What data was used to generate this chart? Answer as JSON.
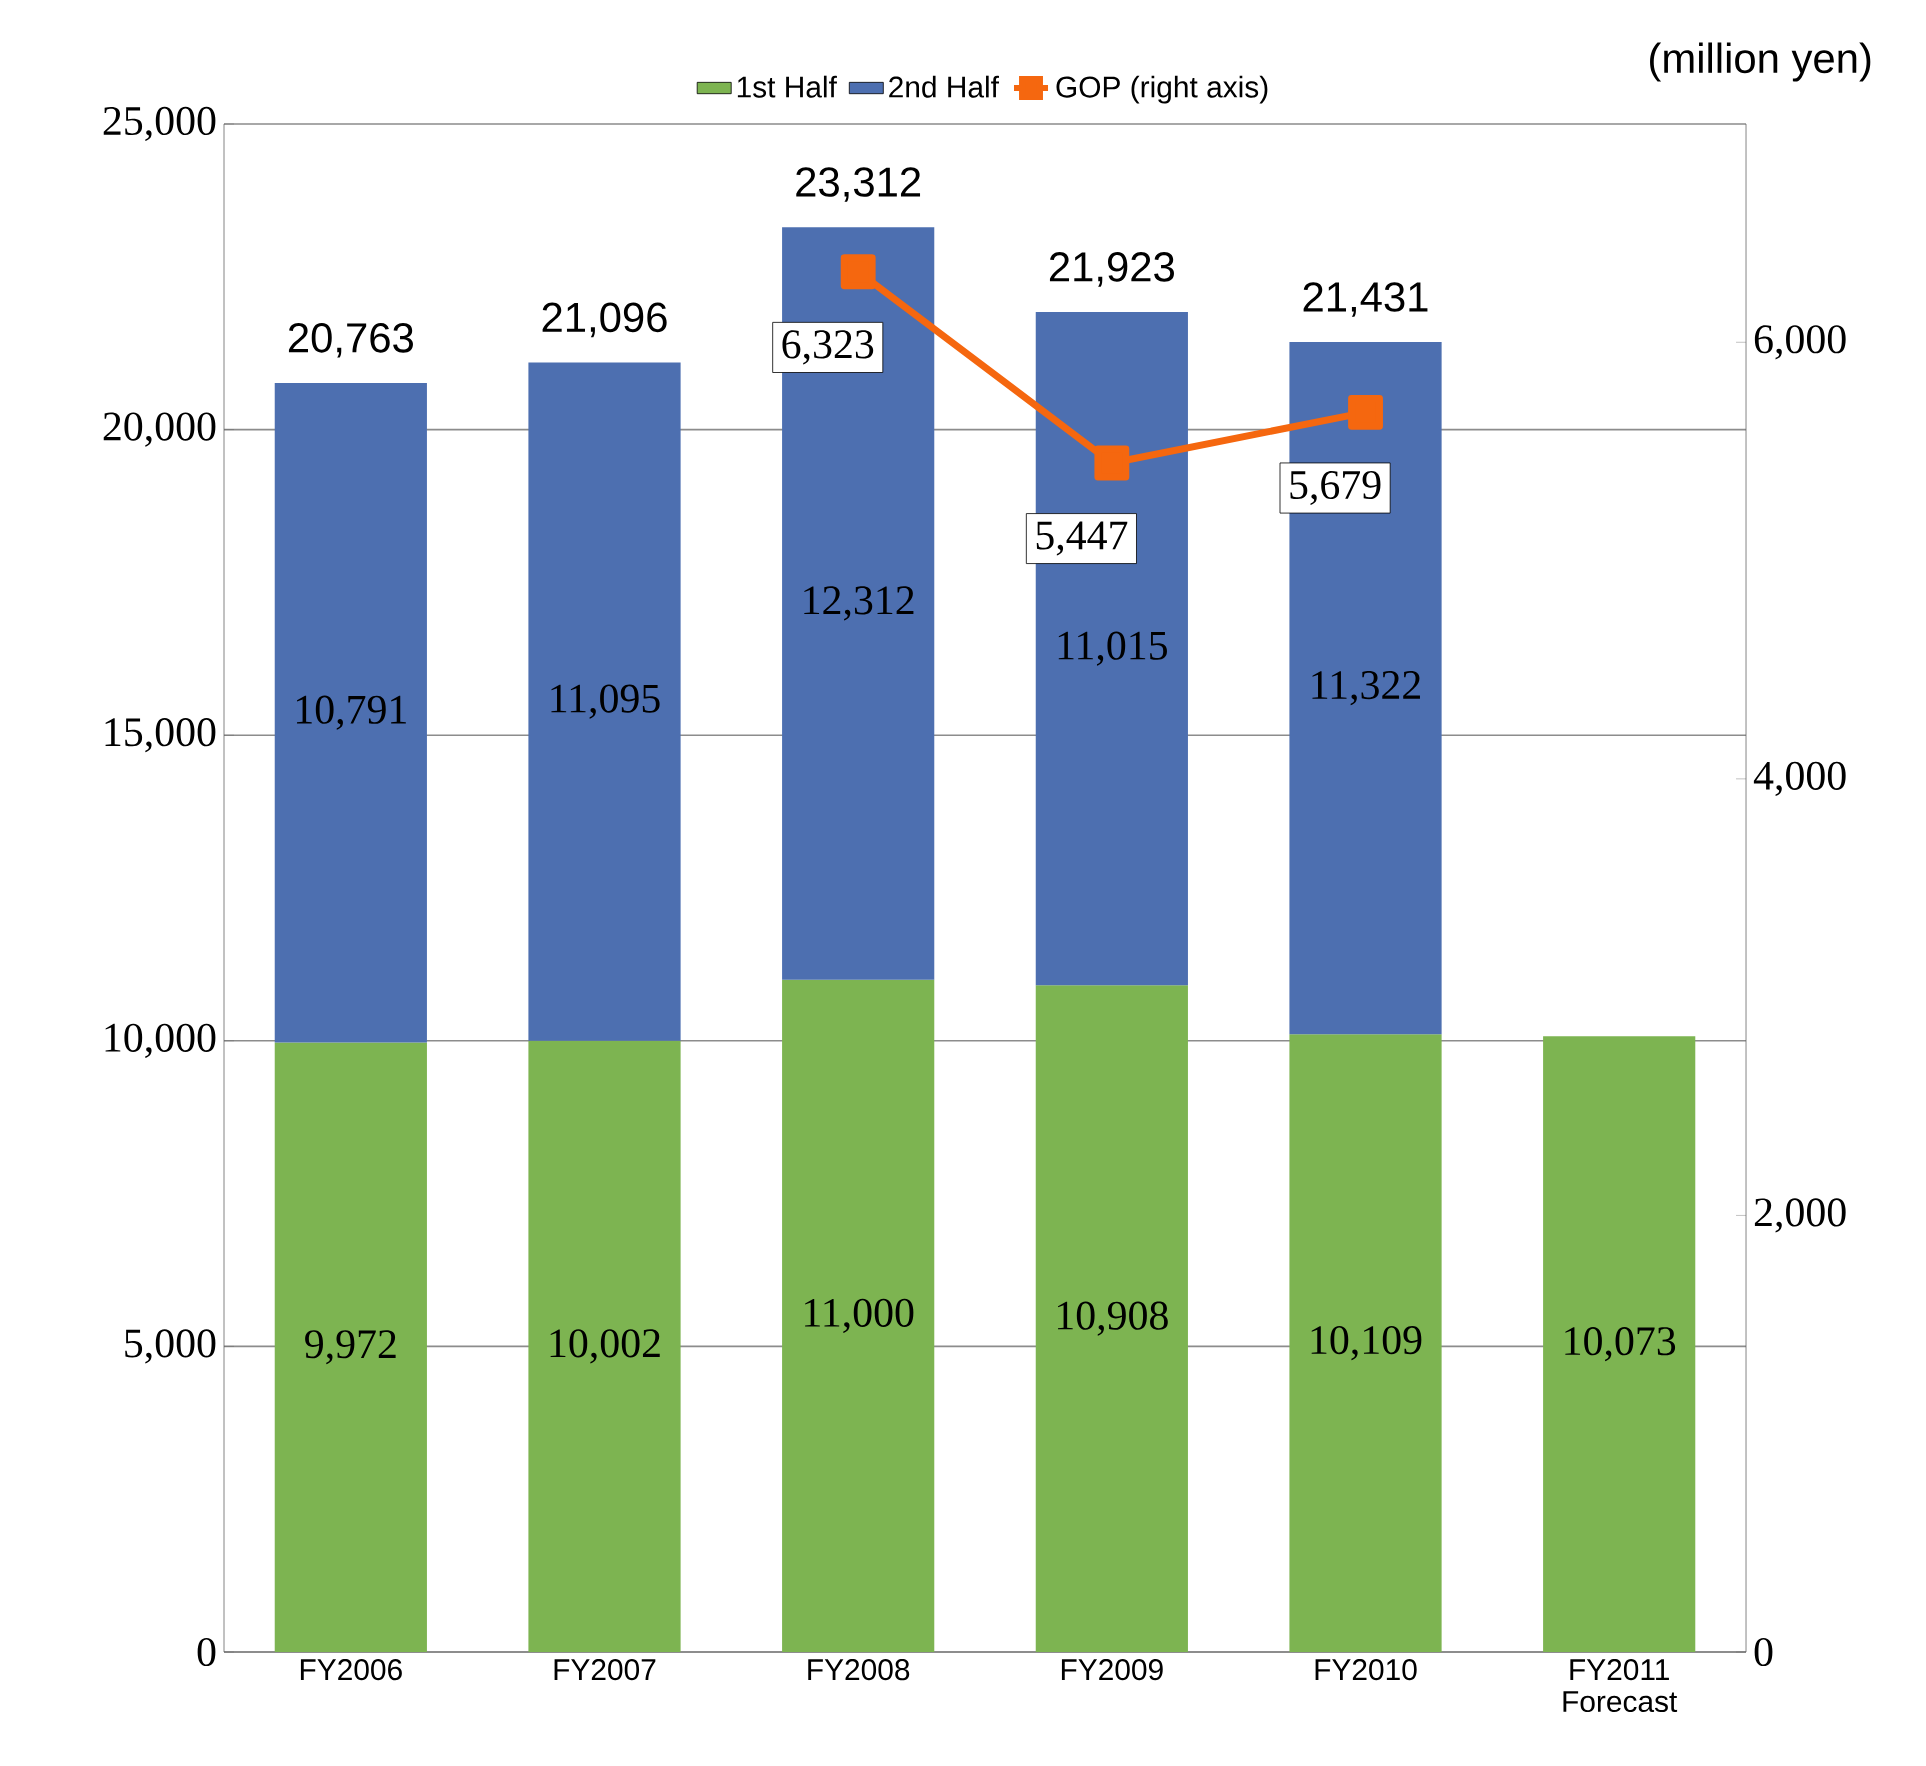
{
  "chart_data": {
    "type": "bar",
    "stacked": true,
    "categories": [
      "FY2006",
      "FY2007",
      "FY2008",
      "FY2009",
      "FY2010",
      "FY2011 Forecast"
    ],
    "series": [
      {
        "name": "1st Half",
        "color": "#7db451",
        "values": [
          9972,
          10002,
          11000,
          10908,
          10109,
          10073
        ],
        "value_labels": [
          "9,972",
          "10,002",
          "11,000",
          "10,908",
          "10,109",
          "10,073"
        ]
      },
      {
        "name": "2nd Half",
        "color": "#4d6fb0",
        "values": [
          10791,
          11095,
          12312,
          11015,
          11322,
          null
        ],
        "value_labels": [
          "10,791",
          "11,095",
          "12,312",
          "11,015",
          "11,322",
          null
        ]
      },
      {
        "name": "GOP (right axis)",
        "type": "line",
        "axis": "y2",
        "marker": "square",
        "color": "#f5670f",
        "values": [
          null,
          null,
          6323,
          5447,
          5679,
          null
        ],
        "value_labels": [
          null,
          null,
          "6,323",
          "5,447",
          "5,679",
          null
        ]
      }
    ],
    "totals": [
      "20,763",
      "21,096",
      "23,312",
      "21,923",
      "21,431",
      null
    ],
    "ylim": [
      0,
      25000
    ],
    "yticks": [
      0,
      {
        "value": 5000,
        "label": "5,000"
      },
      {
        "value": 10000,
        "label": "10,000"
      },
      {
        "value": 15000,
        "label": "15,000"
      },
      {
        "value": 20000,
        "label": "20,000"
      },
      {
        "value": 25000,
        "label": "25,000"
      }
    ],
    "y2lim": [
      0,
      7000
    ],
    "y2ticks": [
      0,
      {
        "value": 2000,
        "label": "2,000"
      },
      {
        "value": 4000,
        "label": "4,000"
      },
      {
        "value": 6000,
        "label": "6,000"
      }
    ],
    "grid": "y",
    "legend": "top",
    "annotations": [
      "(million yen)"
    ]
  }
}
